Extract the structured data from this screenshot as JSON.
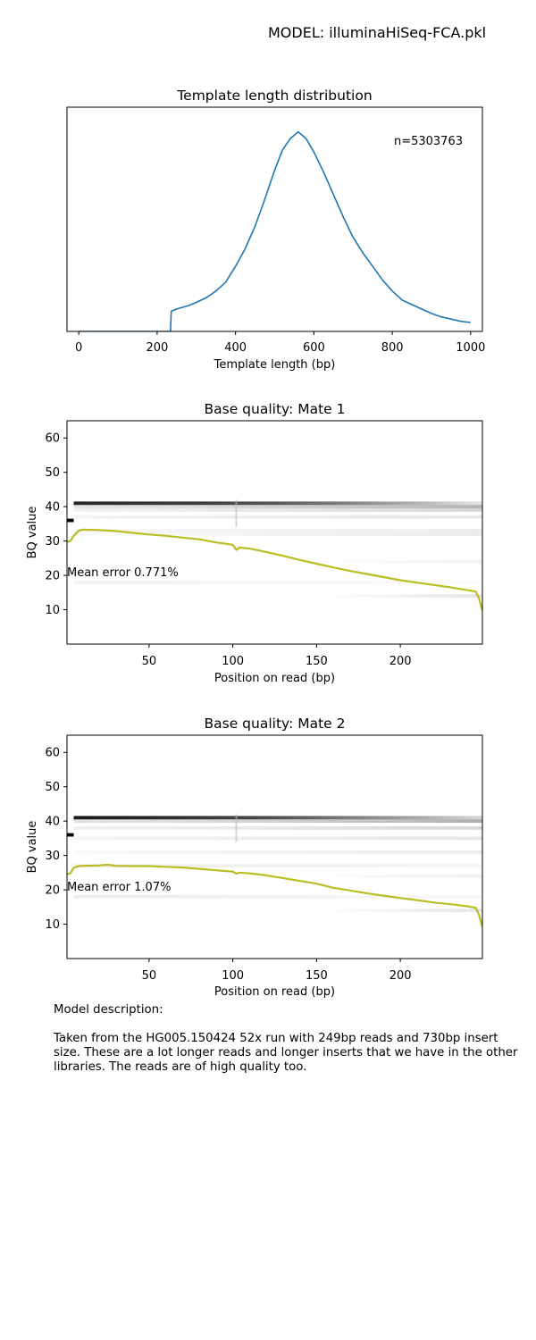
{
  "header": {
    "model_title": "MODEL: illuminaHiSeq-FCA.pkl"
  },
  "description": {
    "heading": "Model description:",
    "body": "Taken from the HG005.150424 52x run with 249bp reads and 730bp insert size. These are a lot longer reads and longer inserts that we have in the other libraries. The reads are of high quality too."
  },
  "colors": {
    "tlen_line": "#1f77b4",
    "mean_bq_line": "#bcbd22",
    "heatmap": "#000000"
  },
  "chart_data": [
    {
      "id": "tlen",
      "type": "line",
      "title": "Template length distribution",
      "xlabel": "Template length (bp)",
      "ylabel": "",
      "annotation": "n=5303763",
      "xlim": [
        -30,
        1030
      ],
      "ylim": [
        0,
        1.0
      ],
      "xticks": [
        0,
        200,
        400,
        600,
        800,
        1000
      ],
      "yticks_visible": false,
      "grid": false,
      "series": [
        {
          "x": [
            0,
            234,
            236,
            250,
            280,
            300,
            325,
            350,
            375,
            400,
            425,
            450,
            475,
            500,
            520,
            540,
            560,
            580,
            600,
            625,
            650,
            675,
            700,
            725,
            750,
            775,
            800,
            825,
            850,
            875,
            900,
            925,
            950,
            975,
            1000
          ],
          "y": [
            0,
            0,
            0.09,
            0.1,
            0.115,
            0.13,
            0.15,
            0.18,
            0.22,
            0.29,
            0.37,
            0.47,
            0.59,
            0.72,
            0.81,
            0.86,
            0.89,
            0.86,
            0.8,
            0.71,
            0.61,
            0.51,
            0.42,
            0.35,
            0.29,
            0.23,
            0.18,
            0.14,
            0.12,
            0.1,
            0.08,
            0.065,
            0.055,
            0.045,
            0.04
          ]
        }
      ]
    },
    {
      "id": "mate1",
      "type": "heatmap",
      "title": "Base quality: Mate 1",
      "xlabel": "Position on read (bp)",
      "ylabel": "BQ value",
      "annotation": "Mean error 0.771%",
      "xlim": [
        1,
        249
      ],
      "ylim": [
        0,
        65
      ],
      "xticks": [
        50,
        100,
        150,
        200
      ],
      "yticks": [
        10,
        20,
        30,
        40,
        50,
        60
      ],
      "grid": false,
      "heatmap_bands": [
        {
          "bq": 41,
          "x": [
            5,
            249
          ],
          "dark": [
            0.85,
            0.8,
            0.75,
            0.65,
            0.5,
            0.3,
            0.1
          ]
        },
        {
          "bq": 40,
          "x": [
            5,
            249
          ],
          "dark": [
            0.1,
            0.12,
            0.14,
            0.18,
            0.22,
            0.25,
            0.3
          ]
        },
        {
          "bq": 39,
          "x": [
            5,
            249
          ],
          "dark": [
            0.05,
            0.06,
            0.08,
            0.1,
            0.12,
            0.14,
            0.16
          ]
        },
        {
          "bq": 37,
          "x": [
            5,
            249
          ],
          "dark": [
            0.05,
            0.06,
            0.06,
            0.07,
            0.08,
            0.09,
            0.1
          ]
        },
        {
          "bq": 36,
          "x": [
            1,
            5
          ],
          "dark": [
            1.0
          ]
        },
        {
          "bq": 33,
          "x": [
            5,
            249
          ],
          "dark": [
            0.04,
            0.04,
            0.05,
            0.05,
            0.06,
            0.06,
            0.08
          ]
        },
        {
          "bq": 32,
          "x": [
            5,
            249
          ],
          "dark": [
            0.02,
            0.03,
            0.04,
            0.05,
            0.06,
            0.07,
            0.08
          ]
        },
        {
          "bq": 24,
          "x": [
            150,
            249
          ],
          "dark": [
            0.0,
            0.03,
            0.05
          ]
        },
        {
          "bq": 18,
          "x": [
            5,
            249
          ],
          "dark": [
            0.05,
            0.05,
            0.04,
            0.03,
            0.03,
            0.02,
            0.02
          ]
        },
        {
          "bq": 14,
          "x": [
            150,
            249
          ],
          "dark": [
            0.0,
            0.05,
            0.1
          ]
        }
      ],
      "series": [
        {
          "name": "Mean BQ",
          "x": [
            1,
            3,
            5,
            8,
            10,
            20,
            30,
            40,
            50,
            60,
            70,
            80,
            90,
            100,
            102,
            104,
            110,
            120,
            130,
            140,
            150,
            160,
            170,
            180,
            190,
            200,
            210,
            220,
            230,
            240,
            245,
            247,
            249
          ],
          "y": [
            29.8,
            30.0,
            31.5,
            33.0,
            33.3,
            33.2,
            32.9,
            32.4,
            31.9,
            31.5,
            31.0,
            30.5,
            29.6,
            28.9,
            27.4,
            28.1,
            27.8,
            26.8,
            25.7,
            24.5,
            23.4,
            22.3,
            21.3,
            20.4,
            19.5,
            18.6,
            17.9,
            17.2,
            16.5,
            15.7,
            15.3,
            13.2,
            9.7
          ]
        }
      ]
    },
    {
      "id": "mate2",
      "type": "heatmap",
      "title": "Base quality: Mate 2",
      "xlabel": "Position on read (bp)",
      "ylabel": "BQ value",
      "annotation": "Mean error 1.07%",
      "xlim": [
        1,
        249
      ],
      "ylim": [
        0,
        65
      ],
      "xticks": [
        50,
        100,
        150,
        200
      ],
      "yticks": [
        10,
        20,
        30,
        40,
        50,
        60
      ],
      "grid": false,
      "heatmap_bands": [
        {
          "bq": 41,
          "x": [
            5,
            249
          ],
          "dark": [
            0.9,
            0.85,
            0.78,
            0.68,
            0.52,
            0.35,
            0.15
          ]
        },
        {
          "bq": 40,
          "x": [
            5,
            249
          ],
          "dark": [
            0.12,
            0.13,
            0.15,
            0.18,
            0.22,
            0.26,
            0.32
          ]
        },
        {
          "bq": 38,
          "x": [
            5,
            249
          ],
          "dark": [
            0.06,
            0.07,
            0.08,
            0.1,
            0.12,
            0.14,
            0.16
          ]
        },
        {
          "bq": 36,
          "x": [
            1,
            5
          ],
          "dark": [
            1.0
          ]
        },
        {
          "bq": 35,
          "x": [
            5,
            249
          ],
          "dark": [
            0.04,
            0.05,
            0.06,
            0.07,
            0.08,
            0.09,
            0.1
          ]
        },
        {
          "bq": 31,
          "x": [
            5,
            249
          ],
          "dark": [
            0.03,
            0.04,
            0.04,
            0.05,
            0.06,
            0.07,
            0.08
          ]
        },
        {
          "bq": 27,
          "x": [
            5,
            249
          ],
          "dark": [
            0.07,
            0.06,
            0.06,
            0.05,
            0.05,
            0.04,
            0.04
          ]
        },
        {
          "bq": 24,
          "x": [
            150,
            249
          ],
          "dark": [
            0.0,
            0.04,
            0.06
          ]
        },
        {
          "bq": 18,
          "x": [
            5,
            249
          ],
          "dark": [
            0.07,
            0.07,
            0.06,
            0.05,
            0.04,
            0.03,
            0.03
          ]
        },
        {
          "bq": 14,
          "x": [
            150,
            249
          ],
          "dark": [
            0.0,
            0.05,
            0.1
          ]
        }
      ],
      "series": [
        {
          "name": "Mean BQ",
          "x": [
            1,
            3,
            5,
            8,
            10,
            20,
            25,
            30,
            40,
            50,
            60,
            70,
            80,
            90,
            100,
            102,
            104,
            110,
            120,
            130,
            140,
            150,
            160,
            170,
            180,
            190,
            200,
            210,
            220,
            230,
            240,
            245,
            247,
            249
          ],
          "y": [
            24.6,
            24.8,
            26.4,
            26.9,
            27.0,
            27.1,
            27.3,
            27.0,
            26.9,
            26.9,
            26.7,
            26.5,
            26.1,
            25.7,
            25.3,
            24.7,
            25.0,
            24.8,
            24.2,
            23.4,
            22.6,
            21.8,
            20.6,
            19.8,
            19.0,
            18.3,
            17.6,
            17.0,
            16.3,
            15.8,
            15.2,
            14.8,
            12.7,
            9.2
          ]
        }
      ]
    }
  ]
}
